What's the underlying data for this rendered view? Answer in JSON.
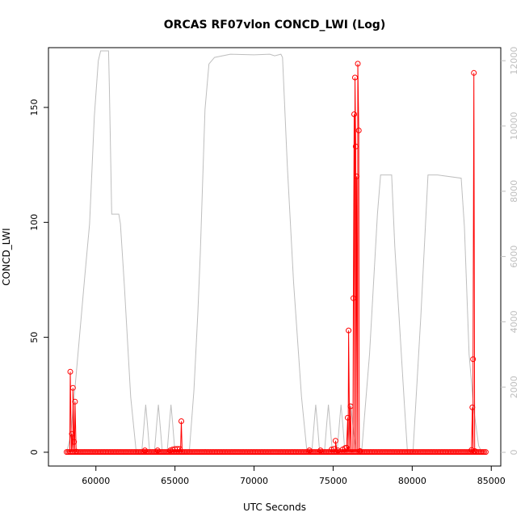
{
  "chart_data": {
    "type": "line",
    "title": "ORCAS RF07vlon CONCD_LWI (Log)",
    "xlabel": "UTC Seconds",
    "ylabel": "CONCD_LWI",
    "xlim": [
      57000,
      85600
    ],
    "ylim": [
      -6,
      176
    ],
    "y2lim": [
      -420,
      12400
    ],
    "x_ticks": [
      {
        "value": 60000,
        "label": "60000"
      },
      {
        "value": 65000,
        "label": "65000"
      },
      {
        "value": 70000,
        "label": "70000"
      },
      {
        "value": 75000,
        "label": "75000"
      },
      {
        "value": 80000,
        "label": "80000"
      },
      {
        "value": 85000,
        "label": "85000"
      }
    ],
    "y_ticks": [
      {
        "value": 0,
        "label": "0"
      },
      {
        "value": 50,
        "label": "50"
      },
      {
        "value": 100,
        "label": "100"
      },
      {
        "value": 150,
        "label": "150"
      }
    ],
    "y2_ticks": [
      {
        "value": 0,
        "label": "0"
      },
      {
        "value": 2000,
        "label": "2000"
      },
      {
        "value": 4000,
        "label": "4000"
      },
      {
        "value": 6000,
        "label": "6000"
      },
      {
        "value": 8000,
        "label": "8000"
      },
      {
        "value": 10000,
        "label": "10000"
      },
      {
        "value": 12000,
        "label": "12000"
      }
    ],
    "grid": false,
    "colors": {
      "concentration": "#ff0000",
      "altitude": "#bebebe",
      "axes": "#000000"
    },
    "series": [
      {
        "axis": "left",
        "style": "line+points",
        "baseline": {
          "from": 58150,
          "to": 84650,
          "step": 100,
          "value": 0.1
        },
        "points": [
          [
            58380,
            35
          ],
          [
            58480,
            8
          ],
          [
            58550,
            28
          ],
          [
            58620,
            4.5
          ],
          [
            58680,
            22
          ],
          [
            58760,
            0.3
          ],
          [
            63100,
            0.8
          ],
          [
            63900,
            0.8
          ],
          [
            64700,
            0.8
          ],
          [
            64850,
            1.2
          ],
          [
            65000,
            1.4
          ],
          [
            65150,
            1.5
          ],
          [
            65300,
            1.5
          ],
          [
            65400,
            13.5
          ],
          [
            73500,
            0.8
          ],
          [
            74200,
            0.8
          ],
          [
            74900,
            1.2
          ],
          [
            75050,
            1.5
          ],
          [
            75150,
            5
          ],
          [
            75300,
            0.8
          ],
          [
            75600,
            1.2
          ],
          [
            75750,
            1.8
          ],
          [
            75850,
            2
          ],
          [
            75920,
            15
          ],
          [
            75980,
            53
          ],
          [
            76100,
            20
          ],
          [
            76280,
            67
          ],
          [
            76330,
            147
          ],
          [
            76380,
            163
          ],
          [
            76430,
            133
          ],
          [
            76490,
            120
          ],
          [
            76560,
            169
          ],
          [
            76620,
            140
          ],
          [
            76700,
            0.5
          ],
          [
            83750,
            1
          ],
          [
            83800,
            19.5
          ],
          [
            83850,
            40.5
          ],
          [
            83900,
            165
          ],
          [
            83960,
            0.5
          ]
        ]
      },
      {
        "axis": "right",
        "style": "line",
        "points": [
          [
            58150,
            0
          ],
          [
            58400,
            500
          ],
          [
            58700,
            2100
          ],
          [
            59300,
            5400
          ],
          [
            59600,
            7000
          ],
          [
            59900,
            10300
          ],
          [
            60150,
            12000
          ],
          [
            60300,
            12300
          ],
          [
            60800,
            12300
          ],
          [
            60850,
            11200
          ],
          [
            61000,
            7300
          ],
          [
            61450,
            7300
          ],
          [
            61550,
            7000
          ],
          [
            61800,
            5100
          ],
          [
            62200,
            1700
          ],
          [
            62550,
            0
          ],
          [
            62900,
            0
          ],
          [
            63050,
            900
          ],
          [
            63150,
            1460
          ],
          [
            63250,
            900
          ],
          [
            63400,
            0
          ],
          [
            63700,
            0
          ],
          [
            63850,
            900
          ],
          [
            63950,
            1460
          ],
          [
            64050,
            900
          ],
          [
            64200,
            0
          ],
          [
            64500,
            0
          ],
          [
            64650,
            900
          ],
          [
            64750,
            1460
          ],
          [
            64850,
            900
          ],
          [
            65000,
            0
          ],
          [
            65900,
            0
          ],
          [
            66200,
            1900
          ],
          [
            66450,
            4300
          ],
          [
            66600,
            6100
          ],
          [
            66900,
            10500
          ],
          [
            67150,
            11900
          ],
          [
            67500,
            12100
          ],
          [
            68500,
            12200
          ],
          [
            70000,
            12180
          ],
          [
            71000,
            12200
          ],
          [
            71300,
            12150
          ],
          [
            71700,
            12200
          ],
          [
            71800,
            12100
          ],
          [
            72100,
            8800
          ],
          [
            72500,
            5200
          ],
          [
            73000,
            1700
          ],
          [
            73350,
            0
          ],
          [
            73650,
            0
          ],
          [
            73800,
            900
          ],
          [
            73900,
            1460
          ],
          [
            74000,
            900
          ],
          [
            74150,
            0
          ],
          [
            74450,
            0
          ],
          [
            74600,
            900
          ],
          [
            74700,
            1460
          ],
          [
            74800,
            900
          ],
          [
            74950,
            0
          ],
          [
            75250,
            0
          ],
          [
            75400,
            900
          ],
          [
            75500,
            1460
          ],
          [
            75600,
            900
          ],
          [
            75750,
            0
          ],
          [
            75900,
            0
          ],
          [
            76100,
            1500
          ],
          [
            76300,
            600
          ],
          [
            76500,
            0
          ],
          [
            76800,
            0
          ],
          [
            77300,
            3000
          ],
          [
            77800,
            7300
          ],
          [
            78000,
            8500
          ],
          [
            78700,
            8500
          ],
          [
            78900,
            6300
          ],
          [
            79500,
            1500
          ],
          [
            79700,
            0
          ],
          [
            80050,
            0
          ],
          [
            80550,
            4200
          ],
          [
            81000,
            8500
          ],
          [
            81600,
            8500
          ],
          [
            83100,
            8400
          ],
          [
            83300,
            6900
          ],
          [
            83600,
            3000
          ],
          [
            83900,
            1300
          ],
          [
            84200,
            200
          ],
          [
            84400,
            0
          ]
        ]
      }
    ]
  }
}
